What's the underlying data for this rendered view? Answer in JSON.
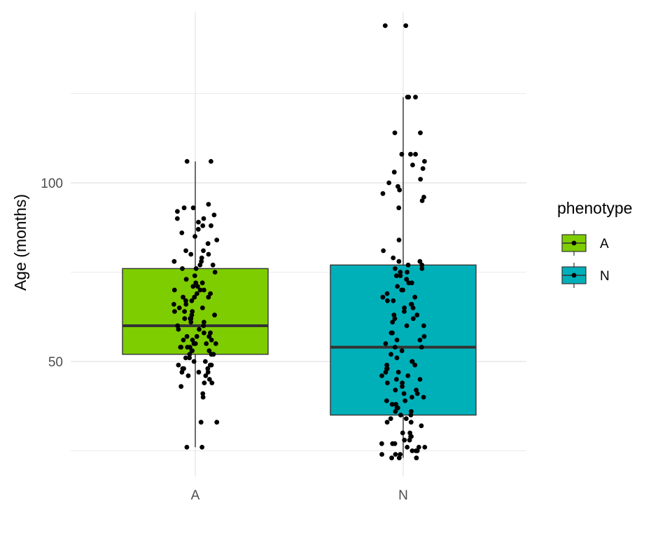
{
  "chart_data": {
    "type": "boxplot",
    "xlabel": "",
    "ylabel": "Age (months)",
    "categories": [
      "A",
      "N"
    ],
    "y_ticks": [
      50,
      100
    ],
    "ylim": [
      21,
      148
    ],
    "grid": true,
    "legend": {
      "title": "phenotype",
      "position": "right",
      "entries": [
        {
          "label": "A",
          "color": "#7ecd00"
        },
        {
          "label": "N",
          "color": "#00b0b9"
        }
      ]
    },
    "boxes": [
      {
        "category": "A",
        "whisker_low": 26,
        "q1": 52,
        "median": 60,
        "q3": 76,
        "whisker_high": 106,
        "color": "#7ecd00"
      },
      {
        "category": "N",
        "whisker_low": 23,
        "q1": 35,
        "median": 54,
        "q3": 77,
        "whisker_high": 124,
        "color": "#00b0b9"
      }
    ],
    "points": {
      "A": [
        26,
        26,
        33,
        33,
        40,
        41,
        43,
        44,
        44,
        45,
        46,
        46,
        47,
        47,
        47,
        48,
        48,
        48,
        49,
        49,
        49,
        50,
        50,
        51,
        51,
        52,
        52,
        52,
        53,
        53,
        53,
        54,
        54,
        54,
        54,
        55,
        55,
        55,
        55,
        56,
        56,
        56,
        57,
        57,
        57,
        58,
        58,
        59,
        59,
        60,
        60,
        61,
        61,
        62,
        62,
        62,
        63,
        63,
        64,
        64,
        64,
        65,
        65,
        66,
        66,
        67,
        67,
        68,
        68,
        68,
        69,
        69,
        70,
        70,
        70,
        71,
        71,
        72,
        72,
        73,
        74,
        75,
        76,
        76,
        77,
        77,
        78,
        78,
        79,
        80,
        80,
        81,
        81,
        83,
        84,
        85,
        86,
        87,
        88,
        88,
        89,
        90,
        90,
        91,
        92,
        93,
        93,
        94,
        106,
        106
      ],
      "N": [
        23,
        23,
        23,
        24,
        24,
        24,
        25,
        25,
        25,
        26,
        26,
        26,
        27,
        27,
        27,
        28,
        28,
        29,
        29,
        30,
        30,
        32,
        33,
        33,
        34,
        34,
        35,
        35,
        36,
        36,
        37,
        37,
        38,
        38,
        39,
        39,
        40,
        40,
        41,
        41,
        42,
        42,
        43,
        44,
        44,
        45,
        45,
        46,
        46,
        47,
        47,
        48,
        48,
        49,
        49,
        50,
        50,
        51,
        52,
        53,
        54,
        54,
        55,
        56,
        56,
        57,
        58,
        58,
        60,
        60,
        61,
        62,
        62,
        63,
        63,
        64,
        65,
        65,
        66,
        66,
        67,
        67,
        68,
        68,
        69,
        70,
        70,
        71,
        72,
        72,
        73,
        74,
        74,
        75,
        75,
        76,
        76,
        77,
        77,
        78,
        78,
        79,
        81,
        84,
        93,
        95,
        96,
        97,
        98,
        99,
        100,
        101,
        103,
        104,
        105,
        106,
        108,
        108,
        108,
        114,
        114,
        124,
        124,
        124,
        144,
        144
      ]
    }
  }
}
